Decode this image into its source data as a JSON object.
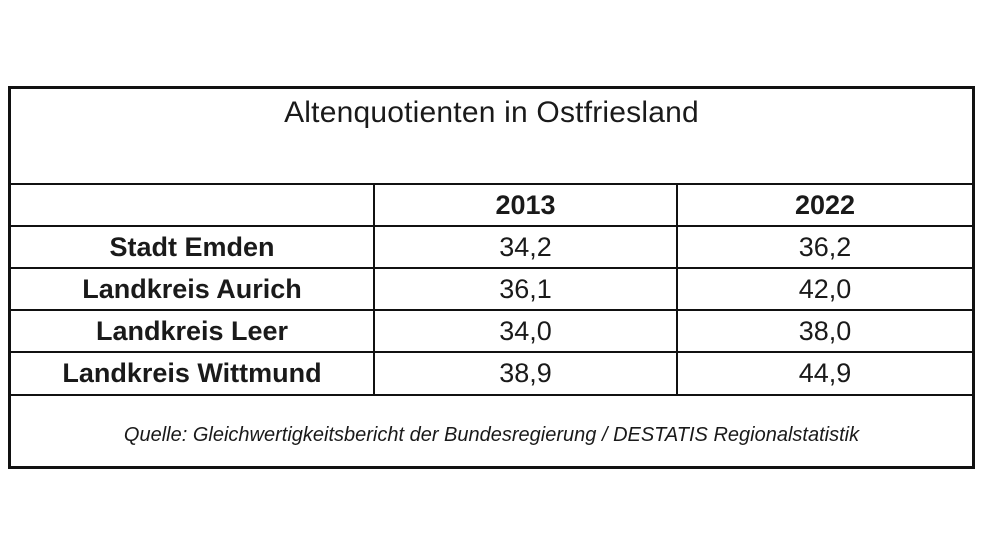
{
  "title": "Altenquotienten in Ostfriesland",
  "columns": [
    "2013",
    "2022"
  ],
  "rows": [
    {
      "label": "Stadt Emden",
      "values": [
        "34,2",
        "36,2"
      ]
    },
    {
      "label": "Landkreis Aurich",
      "values": [
        "36,1",
        "42,0"
      ]
    },
    {
      "label": "Landkreis Leer",
      "values": [
        "34,0",
        "38,0"
      ]
    },
    {
      "label": "Landkreis Wittmund",
      "values": [
        "38,9",
        "44,9"
      ]
    }
  ],
  "source": "Quelle: Gleichwertigkeitsbericht der Bundesregierung / DESTATIS Regionalstatistik"
}
